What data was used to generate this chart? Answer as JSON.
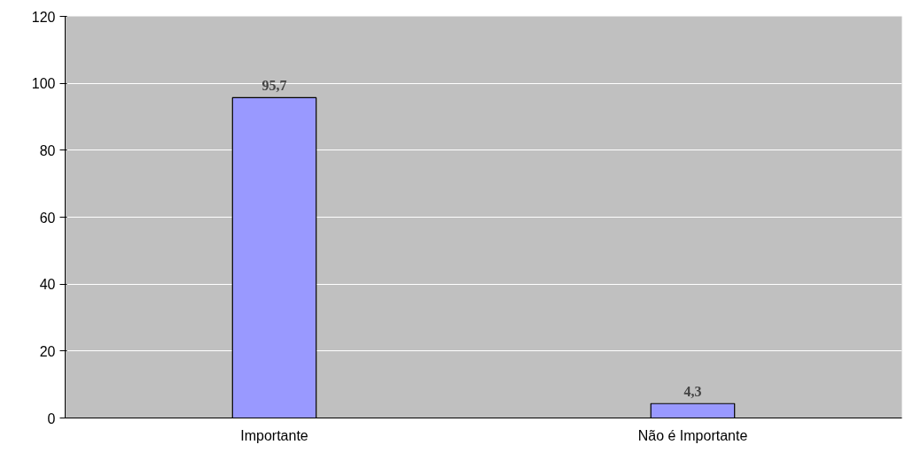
{
  "chart_data": {
    "type": "bar",
    "categories": [
      "Importante",
      "Não é Importante"
    ],
    "values": [
      95.7,
      4.3
    ],
    "value_labels": [
      "95,7",
      "4,3"
    ],
    "color": "#9999ff",
    "ylim": [
      0,
      120
    ],
    "yticks": [
      0,
      20,
      40,
      60,
      80,
      100,
      120
    ],
    "grid": "y"
  }
}
